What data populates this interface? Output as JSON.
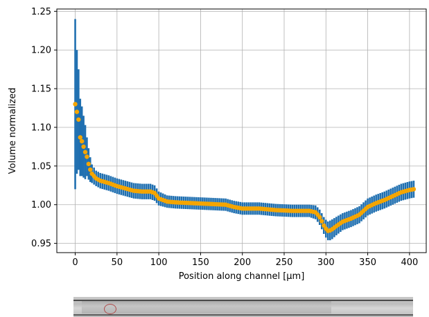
{
  "chart_data": {
    "type": "scatter",
    "title": "",
    "xlabel": "Position along channel [µm]",
    "ylabel": "Volume normalized",
    "xlim": [
      -22,
      420
    ],
    "ylim": [
      0.938,
      1.253
    ],
    "xticks": [
      0,
      50,
      100,
      150,
      200,
      250,
      300,
      350,
      400
    ],
    "yticks": [
      0.95,
      1.0,
      1.05,
      1.1,
      1.15,
      1.2,
      1.25
    ],
    "ytick_labels": [
      "0.95",
      "1.00",
      "1.05",
      "1.10",
      "1.15",
      "1.20",
      "1.25"
    ],
    "grid": true,
    "colors": {
      "marker": "#f5a500",
      "errorbar": "#1f6fb0"
    },
    "profile": {
      "x": [
        0,
        2,
        4,
        6,
        8,
        10,
        12,
        14,
        17,
        20,
        25,
        30,
        40,
        50,
        60,
        70,
        80,
        90,
        95,
        100,
        110,
        120,
        140,
        160,
        180,
        190,
        200,
        220,
        240,
        260,
        280,
        288,
        293,
        298,
        302,
        306,
        312,
        320,
        330,
        340,
        350,
        360,
        370,
        380,
        390,
        400,
        405
      ],
      "y": [
        1.13,
        1.12,
        1.11,
        1.087,
        1.082,
        1.075,
        1.068,
        1.062,
        1.048,
        1.04,
        1.034,
        1.031,
        1.028,
        1.024,
        1.021,
        1.018,
        1.017,
        1.017,
        1.015,
        1.008,
        1.004,
        1.003,
        1.002,
        1.001,
        1.0,
        0.997,
        0.995,
        0.995,
        0.993,
        0.992,
        0.992,
        0.99,
        0.983,
        0.972,
        0.966,
        0.967,
        0.972,
        0.978,
        0.982,
        0.987,
        0.997,
        1.002,
        1.006,
        1.011,
        1.016,
        1.019,
        1.02
      ],
      "err": [
        0.11,
        0.08,
        0.065,
        0.05,
        0.045,
        0.04,
        0.035,
        0.025,
        0.018,
        0.012,
        0.01,
        0.01,
        0.01,
        0.01,
        0.01,
        0.01,
        0.01,
        0.01,
        0.01,
        0.009,
        0.008,
        0.008,
        0.008,
        0.008,
        0.008,
        0.008,
        0.008,
        0.008,
        0.008,
        0.008,
        0.008,
        0.009,
        0.01,
        0.011,
        0.012,
        0.013,
        0.012,
        0.011,
        0.011,
        0.011,
        0.011,
        0.011,
        0.011,
        0.011,
        0.011,
        0.011,
        0.011
      ]
    },
    "sampling": {
      "dense_until": 20,
      "dense_step": 2,
      "step": 2.5
    },
    "micrograph": "channel-micrograph"
  }
}
